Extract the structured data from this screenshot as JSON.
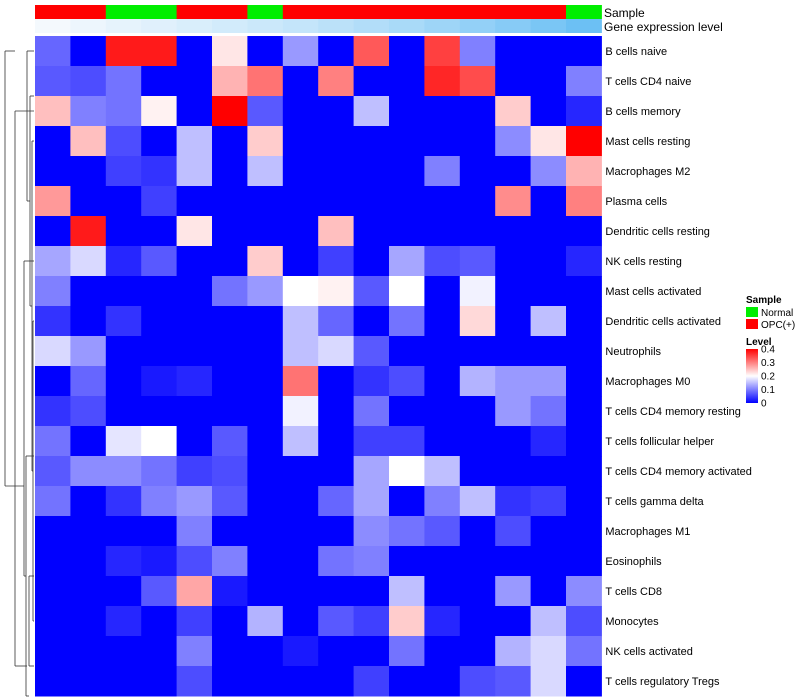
{
  "chart_data": {
    "type": "heatmap",
    "title": "",
    "annotation_labels": {
      "sample": "Sample",
      "gene": "Gene expression level"
    },
    "sample_groups": [
      "OPC",
      "OPC",
      "Normal",
      "Normal",
      "OPC",
      "OPC",
      "Normal",
      "OPC",
      "OPC",
      "OPC",
      "OPC",
      "OPC",
      "OPC",
      "OPC",
      "OPC",
      "Normal"
    ],
    "gene_expression_level": [
      0.0,
      0.03,
      0.06,
      0.09,
      0.12,
      0.15,
      0.18,
      0.21,
      0.25,
      0.29,
      0.33,
      0.38,
      0.43,
      0.48,
      0.54,
      0.6
    ],
    "rows": [
      "B cells naive",
      "T cells CD4 naive",
      "B cells memory",
      "Mast cells resting",
      "Macrophages M2",
      "Plasma cells",
      "Dendritic cells resting",
      "NK cells resting",
      "Mast cells activated",
      "Dendritic cells activated",
      "Neutrophils",
      "Macrophages M0",
      "T cells CD4 memory resting",
      "T cells follicular helper",
      "T cells CD4 memory activated",
      "T cells gamma delta",
      "Macrophages M1",
      "Eosinophils",
      "T cells CD8",
      "Monocytes",
      "NK cells activated",
      "T cells regulatory  Tregs"
    ],
    "values": [
      [
        0.08,
        0.0,
        0.38,
        0.38,
        0.0,
        0.22,
        0.0,
        0.12,
        0.0,
        0.33,
        0.0,
        0.35,
        0.1,
        0.0,
        0.0,
        0.0
      ],
      [
        0.07,
        0.06,
        0.09,
        0.0,
        0.0,
        0.26,
        0.31,
        0.0,
        0.3,
        0.0,
        0.0,
        0.37,
        0.34,
        0.0,
        0.0,
        0.1
      ],
      [
        0.25,
        0.1,
        0.09,
        0.21,
        0.0,
        0.4,
        0.07,
        0.0,
        0.0,
        0.15,
        0.0,
        0.0,
        0.0,
        0.24,
        0.0,
        0.03
      ],
      [
        0.0,
        0.25,
        0.06,
        0.0,
        0.15,
        0.0,
        0.24,
        0.0,
        0.0,
        0.0,
        0.0,
        0.0,
        0.0,
        0.11,
        0.22,
        0.4
      ],
      [
        0.0,
        0.0,
        0.05,
        0.04,
        0.15,
        0.0,
        0.15,
        0.0,
        0.0,
        0.0,
        0.0,
        0.1,
        0.0,
        0.0,
        0.11,
        0.26
      ],
      [
        0.28,
        0.0,
        0.0,
        0.05,
        0.0,
        0.0,
        0.0,
        0.0,
        0.0,
        0.0,
        0.0,
        0.0,
        0.0,
        0.29,
        0.0,
        0.3
      ],
      [
        0.0,
        0.38,
        0.0,
        0.0,
        0.22,
        0.0,
        0.0,
        0.0,
        0.25,
        0.0,
        0.0,
        0.0,
        0.0,
        0.0,
        0.0,
        0.0
      ],
      [
        0.13,
        0.17,
        0.03,
        0.07,
        0.0,
        0.0,
        0.24,
        0.0,
        0.05,
        0.0,
        0.13,
        0.06,
        0.07,
        0.0,
        0.0,
        0.03
      ],
      [
        0.1,
        0.0,
        0.0,
        0.0,
        0.0,
        0.09,
        0.12,
        0.2,
        0.21,
        0.07,
        0.2,
        0.0,
        0.19,
        0.0,
        0.0,
        0.0
      ],
      [
        0.04,
        0.0,
        0.04,
        0.0,
        0.0,
        0.0,
        0.0,
        0.15,
        0.08,
        0.0,
        0.09,
        0.0,
        0.23,
        0.0,
        0.15,
        0.0
      ],
      [
        0.17,
        0.12,
        0.0,
        0.0,
        0.0,
        0.0,
        0.0,
        0.15,
        0.17,
        0.07,
        0.0,
        0.0,
        0.0,
        0.0,
        0.0,
        0.0
      ],
      [
        0.0,
        0.08,
        0.0,
        0.02,
        0.03,
        0.0,
        0.0,
        0.31,
        0.0,
        0.04,
        0.06,
        0.0,
        0.14,
        0.12,
        0.12,
        0.0
      ],
      [
        0.04,
        0.06,
        0.0,
        0.0,
        0.0,
        0.0,
        0.0,
        0.19,
        0.0,
        0.09,
        0.0,
        0.0,
        0.0,
        0.12,
        0.09,
        0.0
      ],
      [
        0.09,
        0.0,
        0.18,
        0.2,
        0.0,
        0.07,
        0.0,
        0.15,
        0.0,
        0.05,
        0.05,
        0.0,
        0.0,
        0.0,
        0.03,
        0.0
      ],
      [
        0.07,
        0.11,
        0.11,
        0.09,
        0.05,
        0.06,
        0.0,
        0.0,
        0.0,
        0.13,
        0.2,
        0.15,
        0.0,
        0.0,
        0.0,
        0.0
      ],
      [
        0.09,
        0.0,
        0.04,
        0.1,
        0.12,
        0.07,
        0.0,
        0.0,
        0.08,
        0.13,
        0.0,
        0.1,
        0.15,
        0.04,
        0.05,
        0.0
      ],
      [
        0.0,
        0.0,
        0.0,
        0.0,
        0.1,
        0.0,
        0.0,
        0.0,
        0.0,
        0.11,
        0.09,
        0.07,
        0.0,
        0.06,
        0.0,
        0.0
      ],
      [
        0.0,
        0.0,
        0.03,
        0.02,
        0.06,
        0.1,
        0.0,
        0.0,
        0.09,
        0.1,
        0.0,
        0.0,
        0.0,
        0.0,
        0.0,
        0.0
      ],
      [
        0.0,
        0.0,
        0.0,
        0.07,
        0.27,
        0.02,
        0.0,
        0.0,
        0.0,
        0.0,
        0.15,
        0.0,
        0.0,
        0.12,
        0.0,
        0.11
      ],
      [
        0.0,
        0.0,
        0.03,
        0.0,
        0.05,
        0.0,
        0.14,
        0.0,
        0.07,
        0.05,
        0.24,
        0.03,
        0.0,
        0.0,
        0.15,
        0.06
      ],
      [
        0.0,
        0.0,
        0.0,
        0.0,
        0.1,
        0.0,
        0.0,
        0.02,
        0.0,
        0.0,
        0.09,
        0.0,
        0.0,
        0.14,
        0.17,
        0.09
      ],
      [
        0.0,
        0.0,
        0.0,
        0.0,
        0.06,
        0.0,
        0.0,
        0.0,
        0.0,
        0.05,
        0.0,
        0.0,
        0.06,
        0.07,
        0.17,
        0.0
      ]
    ],
    "color_scale": {
      "min": 0,
      "max": 0.4,
      "low": "#0000ff",
      "mid": "#ffffff",
      "high": "#ff0000",
      "mid_value": 0.2
    },
    "legend": {
      "sample_title": "Sample",
      "sample_entries": [
        {
          "key": "Normal",
          "label": "Normal",
          "color": "#00ee00"
        },
        {
          "key": "OPC",
          "label": "OPC(+)",
          "color": "#ff0000"
        }
      ],
      "level_title": "Level",
      "level_ticks": [
        "0.4",
        "0.3",
        "0.2",
        "0.1",
        "0"
      ],
      "level_tick_values": [
        0.4,
        0.3,
        0.2,
        0.1,
        0
      ]
    },
    "gene_level_colors": {
      "low": "#f4f9fd",
      "high": "#6cc0f4"
    },
    "grid": false,
    "legend_position": "right",
    "dendrogram": true
  }
}
